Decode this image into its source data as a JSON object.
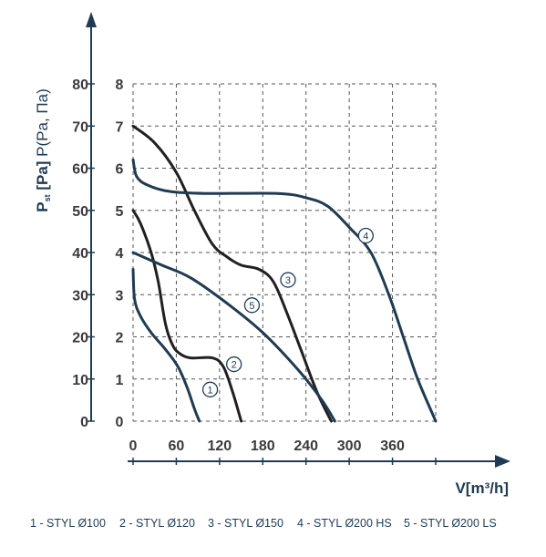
{
  "chart_data": {
    "type": "line",
    "ylabel_main": "P",
    "ylabel_sub": "st",
    "ylabel_bracket": "[Pa]",
    "ylabel_alt": "P(Pa, Па)",
    "xlabel": "V[m³/h]",
    "x_ticks": [
      "0",
      "60",
      "120",
      "180",
      "240",
      "300",
      "360"
    ],
    "y_ticks_left": [
      "0",
      "10",
      "20",
      "30",
      "40",
      "50",
      "60",
      "70",
      "80"
    ],
    "y_ticks_right": [
      "0",
      "1",
      "2",
      "3",
      "4",
      "5",
      "6",
      "7",
      "8"
    ],
    "xlim": [
      0,
      420
    ],
    "ylim": [
      0,
      80
    ],
    "grid": true,
    "series": [
      {
        "name": "1",
        "color": "#1f3b53",
        "points": [
          [
            0,
            36
          ],
          [
            2,
            29
          ],
          [
            10,
            25
          ],
          [
            25,
            21
          ],
          [
            45,
            17
          ],
          [
            62,
            13
          ],
          [
            75,
            8
          ],
          [
            85,
            3
          ],
          [
            92,
            0
          ]
        ]
      },
      {
        "name": "2",
        "color": "#231f20",
        "points": [
          [
            0,
            50
          ],
          [
            10,
            47
          ],
          [
            25,
            40
          ],
          [
            35,
            33
          ],
          [
            45,
            23
          ],
          [
            55,
            18
          ],
          [
            65,
            16
          ],
          [
            80,
            15
          ],
          [
            110,
            15
          ],
          [
            125,
            13
          ],
          [
            138,
            7
          ],
          [
            150,
            0
          ]
        ]
      },
      {
        "name": "3",
        "color": "#231f20",
        "points": [
          [
            0,
            70
          ],
          [
            30,
            66
          ],
          [
            60,
            59
          ],
          [
            85,
            50
          ],
          [
            110,
            42
          ],
          [
            130,
            39
          ],
          [
            150,
            37
          ],
          [
            175,
            36
          ],
          [
            195,
            33
          ],
          [
            215,
            25
          ],
          [
            235,
            16
          ],
          [
            255,
            7
          ],
          [
            275,
            0
          ]
        ]
      },
      {
        "name": "4",
        "color": "#1f3b53",
        "points": [
          [
            0,
            62
          ],
          [
            5,
            58
          ],
          [
            20,
            56
          ],
          [
            50,
            54.5
          ],
          [
            100,
            54
          ],
          [
            200,
            54
          ],
          [
            240,
            53
          ],
          [
            270,
            51
          ],
          [
            300,
            46
          ],
          [
            330,
            40
          ],
          [
            355,
            30
          ],
          [
            375,
            20
          ],
          [
            395,
            10
          ],
          [
            420,
            0
          ]
        ]
      },
      {
        "name": "5",
        "color": "#1f3b53",
        "points": [
          [
            0,
            40
          ],
          [
            40,
            37
          ],
          [
            80,
            34
          ],
          [
            130,
            28
          ],
          [
            180,
            21
          ],
          [
            230,
            12
          ],
          [
            262,
            5
          ],
          [
            280,
            0
          ]
        ]
      }
    ],
    "curve_labels": [
      {
        "text": "1",
        "x": 107,
        "y": 7.5
      },
      {
        "text": "2",
        "x": 140,
        "y": 13.5
      },
      {
        "text": "3",
        "x": 215,
        "y": 33.5
      },
      {
        "text": "4",
        "x": 323,
        "y": 44
      },
      {
        "text": "5",
        "x": 165,
        "y": 27.5
      }
    ],
    "legend": [
      "1 - STYL Ø100",
      "2 - STYL Ø120",
      "3 - STYL Ø150",
      "4 - STYL Ø200 HS",
      "5 - STYL Ø200 LS"
    ]
  }
}
